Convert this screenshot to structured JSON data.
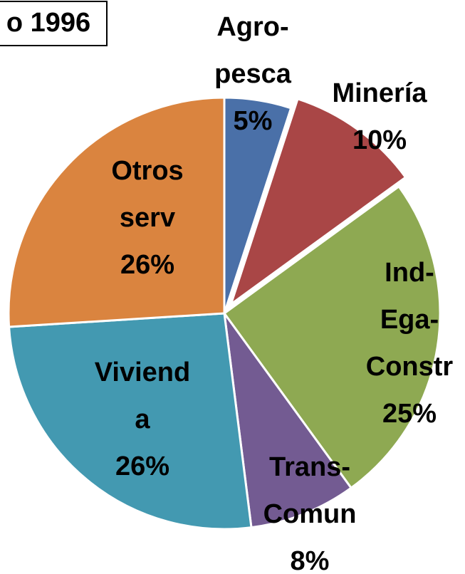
{
  "chart_data": {
    "type": "pie",
    "title": "o 1996",
    "categories": [
      "Agro-pesca",
      "Minería",
      "Ind-Ega-Constr",
      "Trans-Comun",
      "Vivienda",
      "Otros serv"
    ],
    "values": [
      5,
      10,
      25,
      8,
      26,
      26
    ],
    "value_labels": [
      "5%",
      "10%",
      "25%",
      "8%",
      "26%",
      "26%"
    ],
    "colors": [
      "#4a70a8",
      "#a94646",
      "#8ea952",
      "#735b92",
      "#4399b1",
      "#da843f"
    ],
    "exploded": [
      "Minería"
    ]
  }
}
